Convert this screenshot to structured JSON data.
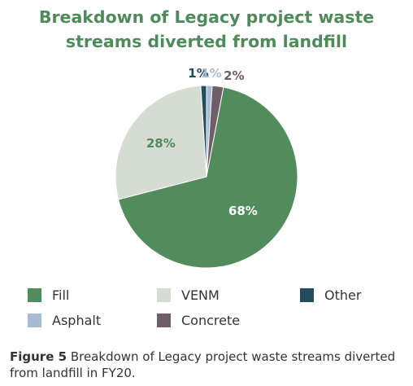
{
  "title_lines": [
    "Breakdown of Legacy project waste",
    "streams diverted from landfill"
  ],
  "chart_data": {
    "type": "pie",
    "title": "Breakdown of Legacy project waste streams diverted from landfill",
    "slices": [
      {
        "label": "Fill",
        "value": 68,
        "display": "68%",
        "color": "#528c5d"
      },
      {
        "label": "VENM",
        "value": 28,
        "display": "28%",
        "color": "#d5ddd2"
      },
      {
        "label": "Other",
        "value": 1,
        "display": "1%",
        "color": "#234d5f"
      },
      {
        "label": "Asphalt",
        "value": 1,
        "display": "1%",
        "color": "#a8bbd4"
      },
      {
        "label": "Concrete",
        "value": 2,
        "display": "2%",
        "color": "#6f5d68"
      }
    ]
  },
  "legend": [
    {
      "label": "Fill",
      "color": "#528c5d"
    },
    {
      "label": "VENM",
      "color": "#d5ddd2"
    },
    {
      "label": "Other",
      "color": "#234d5f"
    },
    {
      "label": "Asphalt",
      "color": "#a8bbd4"
    },
    {
      "label": "Concrete",
      "color": "#6f5d68"
    }
  ],
  "caption": {
    "figure_label": "Figure 5",
    "text": "Breakdown of Legacy project waste streams diverted from landfill in FY20."
  }
}
